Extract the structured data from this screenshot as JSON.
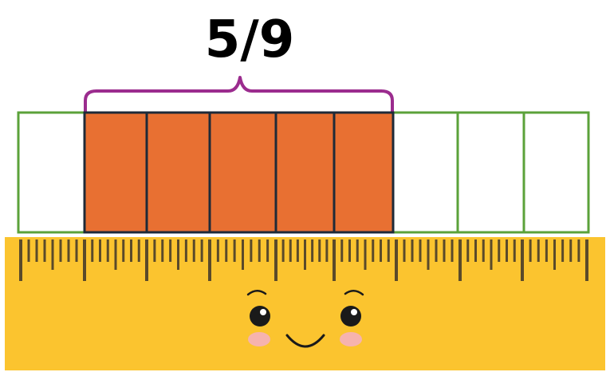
{
  "fraction": {
    "label": "5/9",
    "numerator": 5,
    "denominator": 9
  },
  "colors": {
    "filled": "#E87032",
    "cell_outline_empty": "#5BA23A",
    "cell_outline_filled": "#1E2A38",
    "brace": "#9B2C8E",
    "ruler_body": "#FBC42F",
    "ruler_ticks": "#5A4A2A",
    "face_features": "#1A1A1A",
    "cheeks": "#F6B3AE"
  },
  "icons": {
    "ruler": "ruler-icon",
    "face": "smiley-face-icon",
    "brace": "curly-brace-icon"
  }
}
